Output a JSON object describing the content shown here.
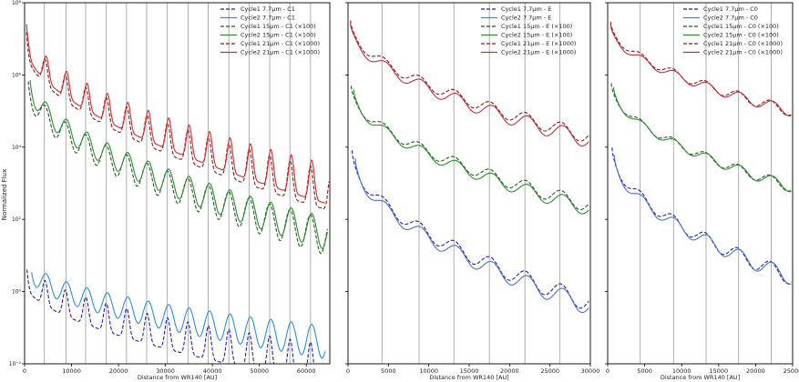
{
  "figure": {
    "ylabel": "Normalized Flux"
  },
  "chart_data": [
    {
      "type": "line",
      "panel": "C1",
      "xlabel": "Distance from WR140 [AU]",
      "ylabel": "Normalized Flux",
      "xlim": [
        0,
        65000
      ],
      "ylim": [
        0.01,
        100000000
      ],
      "yscale": "log",
      "xticks": [
        0,
        10000,
        20000,
        30000,
        40000,
        50000,
        60000
      ],
      "xtick_labels": [
        "0",
        "10000",
        "20000",
        "30000",
        "40000",
        "50000",
        "60000"
      ],
      "yticks": [
        0.01,
        1,
        100,
        10000,
        1000000,
        100000000
      ],
      "ytick_labels": [
        "10⁻²",
        "10⁰",
        "10²",
        "10⁴",
        "10⁶",
        "10⁸"
      ],
      "vlines": [
        4200,
        8800,
        13000,
        17400,
        21700,
        26000,
        30400,
        34800,
        39100,
        43500,
        47800,
        52200,
        56500,
        60900
      ],
      "legend": {
        "position": "upper right",
        "entries": [
          {
            "label": "Cycle1 7.7μm - C1",
            "color": "#1f1fbf",
            "dash": "dashed"
          },
          {
            "label": "Cycle2 7.7μm - C1",
            "color": "#2a8fe0",
            "dash": "solid"
          },
          {
            "label": "Cycle1 15μm - C1 (×100)",
            "color": "#1e5e1e",
            "dash": "dashed"
          },
          {
            "label": "Cycle2 15μm - C1 (×100)",
            "color": "#2e8b2e",
            "dash": "solid"
          },
          {
            "label": "Cycle1 21μm - C1 (×1000)",
            "color": "#8b1a1a",
            "dash": "dashed"
          },
          {
            "label": "Cycle2 21μm - C1 (×1000)",
            "color": "#d42a2a",
            "dash": "solid"
          }
        ]
      },
      "series": [
        {
          "model": "7.7",
          "style": "cycle1",
          "label": "Cycle1 7.7μm - C1",
          "color": "#1f1fbf",
          "base_decades": [
            0.5,
            -2.0
          ],
          "amp": 0.55,
          "period": 4350,
          "dips": true,
          "x": [
            500,
            63500
          ]
        },
        {
          "model": "7.7",
          "style": "cycle2",
          "label": "Cycle2 7.7μm - C1",
          "color": "#2a8fe0",
          "base_decades": [
            0.6,
            -1.4
          ],
          "amp": 0.45,
          "period": 4350,
          "dips": false,
          "x": [
            1500,
            64000
          ]
        },
        {
          "model": "15",
          "style": "cycle1",
          "label": "Cycle1 15μm - C1 (×100)",
          "color": "#1e5e1e",
          "base_decades": [
            5.7,
            1.5
          ],
          "amp": 0.5,
          "period": 4350,
          "dips": false,
          "x": [
            800,
            64500
          ]
        },
        {
          "model": "15",
          "style": "cycle2",
          "label": "Cycle2 15μm - C1 (×100)",
          "color": "#2e8b2e",
          "base_decades": [
            5.8,
            1.6
          ],
          "amp": 0.45,
          "period": 4350,
          "dips": false,
          "x": [
            1200,
            64500
          ]
        },
        {
          "model": "21",
          "style": "cycle1",
          "label": "Cycle1 21μm - C1 (×1000)",
          "color": "#8b1a1a",
          "base_decades": [
            7.0,
            2.8
          ],
          "amp": 0.55,
          "period": 4350,
          "dips": true,
          "x": [
            400,
            64800
          ]
        },
        {
          "model": "21",
          "style": "cycle2",
          "label": "Cycle2 21μm - C1 (×1000)",
          "color": "#d42a2a",
          "base_decades": [
            7.1,
            3.0
          ],
          "amp": 0.55,
          "period": 4350,
          "dips": true,
          "x": [
            400,
            64000
          ]
        }
      ]
    },
    {
      "type": "line",
      "panel": "E",
      "xlabel": "Distance from WR140 [AU]",
      "xlim": [
        0,
        30000
      ],
      "ylim": [
        0.01,
        100000000
      ],
      "yscale": "log",
      "xticks": [
        0,
        5000,
        10000,
        15000,
        20000,
        25000,
        30000
      ],
      "xtick_labels": [
        "0",
        "5000",
        "10000",
        "15000",
        "20000",
        "25000",
        "30000"
      ],
      "vlines": [
        4200,
        8800,
        13100,
        17500,
        21900,
        26200
      ],
      "legend": {
        "position": "upper right",
        "entries": [
          {
            "label": "Cycle1 7.7μm - E",
            "color": "#1f1fbf",
            "dash": "dashed"
          },
          {
            "label": "Cycle2 7.7μm - E",
            "color": "#2a8fe0",
            "dash": "solid"
          },
          {
            "label": "Cycle1 15μm - E (×100)",
            "color": "#1e5e1e",
            "dash": "dashed"
          },
          {
            "label": "Cycle2 15μm - E (×100)",
            "color": "#2e8b2e",
            "dash": "solid"
          },
          {
            "label": "Cycle1 21μm - E (×1000)",
            "color": "#8b1a1a",
            "dash": "dashed"
          },
          {
            "label": "Cycle2 21μm - E (×1000)",
            "color": "#d42a2a",
            "dash": "solid"
          }
        ]
      },
      "series": [
        {
          "model": "7.7",
          "style": "cycle1",
          "label": "Cycle1 7.7μm - E",
          "color": "#1f1fbf",
          "base_decades": [
            3.8,
            -0.3
          ],
          "amp": 0.25,
          "period": 4400,
          "dips": false,
          "x": [
            500,
            29800
          ]
        },
        {
          "model": "7.7",
          "style": "cycle2",
          "label": "Cycle2 7.7μm - E",
          "color": "#4a72c8",
          "base_decades": [
            3.6,
            -0.4
          ],
          "amp": 0.25,
          "period": 4400,
          "dips": false,
          "x": [
            900,
            29800
          ]
        },
        {
          "model": "15",
          "style": "cycle1",
          "label": "Cycle1 15μm - E (×100)",
          "color": "#1e5e1e",
          "base_decades": [
            5.6,
            2.4
          ],
          "amp": 0.2,
          "period": 4400,
          "dips": false,
          "x": [
            400,
            29800
          ]
        },
        {
          "model": "15",
          "style": "cycle2",
          "label": "Cycle2 15μm - E (×100)",
          "color": "#2e8b2e",
          "base_decades": [
            5.5,
            2.3
          ],
          "amp": 0.2,
          "period": 4400,
          "dips": false,
          "x": [
            700,
            29800
          ]
        },
        {
          "model": "21",
          "style": "cycle1",
          "label": "Cycle1 21μm - E (×1000)",
          "color": "#8b1a1a",
          "base_decades": [
            7.4,
            4.3
          ],
          "amp": 0.2,
          "period": 4400,
          "dips": false,
          "x": [
            300,
            29800
          ]
        },
        {
          "model": "21",
          "style": "cycle2",
          "label": "Cycle2 21μm - E (×1000)",
          "color": "#c0303a",
          "base_decades": [
            7.3,
            4.2
          ],
          "amp": 0.22,
          "period": 4400,
          "dips": false,
          "x": [
            300,
            29800
          ]
        }
      ]
    },
    {
      "type": "line",
      "panel": "C0",
      "xlabel": "Distance from WR140 [AU]",
      "xlim": [
        0,
        25000
      ],
      "ylim": [
        0.01,
        100000000
      ],
      "yscale": "log",
      "xticks": [
        0,
        5000,
        10000,
        15000,
        20000,
        25000
      ],
      "xtick_labels": [
        "0",
        "5000",
        "10000",
        "15000",
        "20000",
        "25000"
      ],
      "vlines": [
        4400,
        8900,
        13300,
        17700,
        22100
      ],
      "legend": {
        "position": "upper right",
        "entries": [
          {
            "label": "Cycle1 7.7μm - C0",
            "color": "#1f1fbf",
            "dash": "dashed"
          },
          {
            "label": "Cycle2 7.7μm - C0",
            "color": "#2a8fe0",
            "dash": "solid"
          },
          {
            "label": "Cycle1 15μm - C0 (×100)",
            "color": "#1e5e1e",
            "dash": "dashed"
          },
          {
            "label": "Cycle2 15μm - C0 (×100)",
            "color": "#2e8b2e",
            "dash": "solid"
          },
          {
            "label": "Cycle1 21μm - C0 (×1000)",
            "color": "#8b1a1a",
            "dash": "dashed"
          },
          {
            "label": "Cycle2 21μm - C0 (×1000)",
            "color": "#d42a2a",
            "dash": "solid"
          }
        ]
      },
      "series": [
        {
          "model": "7.7",
          "style": "cycle1",
          "label": "Cycle1 7.7μm - C0",
          "color": "#1f1fbf",
          "base_decades": [
            3.9,
            0.4
          ],
          "amp": 0.22,
          "period": 4400,
          "dips": false,
          "x": [
            600,
            24800
          ]
        },
        {
          "model": "7.7",
          "style": "cycle2",
          "label": "Cycle2 7.7μm - C0",
          "color": "#4a72c8",
          "base_decades": [
            3.7,
            0.4
          ],
          "amp": 0.22,
          "period": 4400,
          "dips": false,
          "x": [
            900,
            24800
          ]
        },
        {
          "model": "15",
          "style": "cycle1",
          "label": "Cycle1 15μm - C0 (×100)",
          "color": "#1e5e1e",
          "base_decades": [
            5.7,
            2.9
          ],
          "amp": 0.15,
          "period": 4400,
          "dips": false,
          "x": [
            500,
            24800
          ]
        },
        {
          "model": "15",
          "style": "cycle2",
          "label": "Cycle2 15μm - C0 (×100)",
          "color": "#2e8b2e",
          "base_decades": [
            5.6,
            2.9
          ],
          "amp": 0.15,
          "period": 4400,
          "dips": false,
          "x": [
            800,
            24800
          ]
        },
        {
          "model": "21",
          "style": "cycle1",
          "label": "Cycle1 21μm - C0 (×1000)",
          "color": "#8b1a1a",
          "base_decades": [
            7.4,
            5.0
          ],
          "amp": 0.15,
          "period": 4400,
          "dips": false,
          "x": [
            400,
            24800
          ]
        },
        {
          "model": "21",
          "style": "cycle2",
          "label": "Cycle2 21μm - C0 (×1000)",
          "color": "#c0303a",
          "base_decades": [
            7.3,
            5.0
          ],
          "amp": 0.15,
          "period": 4400,
          "dips": false,
          "x": [
            400,
            24800
          ]
        }
      ]
    }
  ]
}
